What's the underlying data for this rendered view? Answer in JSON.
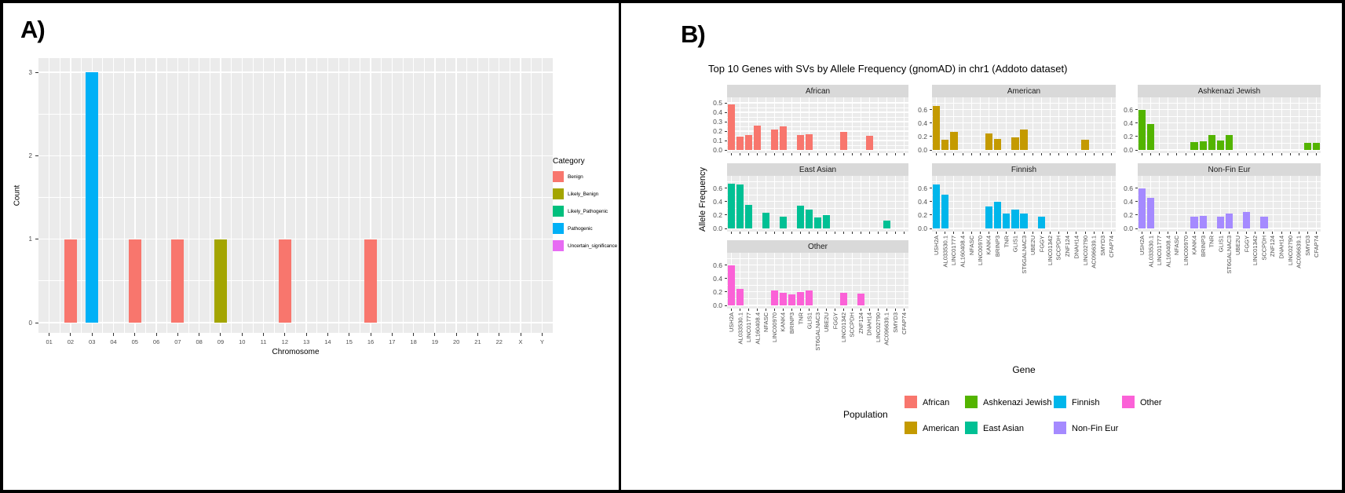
{
  "panel_a": {
    "label": "A)"
  },
  "panel_b": {
    "label": "B)"
  },
  "chart_data": [
    {
      "id": "clinical-significance-by-chromosome",
      "type": "bar",
      "title": "",
      "xlabel": "Chromosome",
      "ylabel": "Count",
      "ylim": [
        0,
        3
      ],
      "yticks": [
        0,
        1,
        2,
        3
      ],
      "grid": true,
      "panel_background": "#EBEBEB",
      "categories": [
        "01",
        "02",
        "03",
        "04",
        "05",
        "06",
        "07",
        "08",
        "09",
        "10",
        "11",
        "12",
        "13",
        "14",
        "15",
        "16",
        "17",
        "18",
        "19",
        "20",
        "21",
        "22",
        "X",
        "Y"
      ],
      "bars": [
        {
          "chromosome": "02",
          "category": "Benign",
          "count": 1
        },
        {
          "chromosome": "03",
          "category": "Pathogenic",
          "count": 3
        },
        {
          "chromosome": "05",
          "category": "Benign",
          "count": 1
        },
        {
          "chromosome": "07",
          "category": "Benign",
          "count": 1
        },
        {
          "chromosome": "09",
          "category": "Likely_Benign",
          "count": 1
        },
        {
          "chromosome": "12",
          "category": "Benign",
          "count": 1
        },
        {
          "chromosome": "16",
          "category": "Benign",
          "count": 1
        }
      ],
      "legend": {
        "title": "Category",
        "position": "right",
        "entries": [
          {
            "label": "Benign",
            "color": "#F8766D"
          },
          {
            "label": "Likely_Benign",
            "color": "#A3A500"
          },
          {
            "label": "Likely_Pathogenic",
            "color": "#00BF7D"
          },
          {
            "label": "Pathogenic",
            "color": "#00B0F6"
          },
          {
            "label": "Uncertain_significance",
            "color": "#E76BF3"
          }
        ]
      }
    },
    {
      "id": "top10-genes-allele-frequency-facets",
      "type": "bar",
      "faceted": true,
      "title": "Top 10 Genes with SVs by Allele Frequency (gnomAD) in chr1 (Addoto dataset)",
      "xlabel": "Gene",
      "ylabel": "Allele Frequency",
      "grid": true,
      "panel_background": "#EBEBEB",
      "categories": [
        "USH2A",
        "AL033530.1",
        "LINC01777",
        "AL160408.4",
        "NFASC",
        "LINC00970",
        "KANK4",
        "BRINP3",
        "TNR",
        "GLIS1",
        "ST6GALNAC3",
        "UBE2U",
        "FGGY",
        "LINC01342",
        "SCCPDH",
        "ZNF124",
        "DNAH14",
        "LINC02790",
        "AC096639.1",
        "SMYD3",
        "CFAP74"
      ],
      "facets": [
        {
          "name": "African",
          "color": "#F8766D",
          "ylim": [
            0,
            0.5
          ],
          "yticks": [
            0,
            0.1,
            0.2,
            0.3,
            0.4,
            0.5
          ],
          "values": {
            "USH2A": 0.48,
            "AL033530.1": 0.14,
            "LINC01777": 0.16,
            "AL160408.4": 0.26,
            "LINC00970": 0.22,
            "KANK4": 0.25,
            "TNR": 0.16,
            "GLIS1": 0.17,
            "LINC01342": 0.19,
            "DNAH14": 0.15
          }
        },
        {
          "name": "American",
          "color": "#C49A00",
          "ylim": [
            0,
            0.7
          ],
          "yticks": [
            0,
            0.2,
            0.4,
            0.6
          ],
          "values": {
            "USH2A": 0.65,
            "AL033530.1": 0.15,
            "LINC01777": 0.27,
            "KANK4": 0.24,
            "BRINP3": 0.16,
            "GLIS1": 0.19,
            "ST6GALNAC3": 0.3,
            "LINC02790": 0.15
          }
        },
        {
          "name": "Ashkenazi Jewish",
          "color": "#53B400",
          "ylim": [
            0,
            0.7
          ],
          "yticks": [
            0,
            0.2,
            0.4,
            0.6
          ],
          "values": {
            "USH2A": 0.6,
            "AL033530.1": 0.38,
            "KANK4": 0.12,
            "BRINP3": 0.13,
            "TNR": 0.22,
            "GLIS1": 0.14,
            "ST6GALNAC3": 0.22,
            "SMYD3": 0.11,
            "CFAP74": 0.1
          }
        },
        {
          "name": "East Asian",
          "color": "#00C094",
          "ylim": [
            0,
            0.7
          ],
          "yticks": [
            0,
            0.2,
            0.4,
            0.6
          ],
          "values": {
            "USH2A": 0.67,
            "AL033530.1": 0.65,
            "LINC01777": 0.35,
            "NFASC": 0.23,
            "KANK4": 0.17,
            "TNR": 0.34,
            "GLIS1": 0.28,
            "ST6GALNAC3": 0.16,
            "UBE2U": 0.2,
            "AC096639.1": 0.12
          }
        },
        {
          "name": "Finnish",
          "color": "#00B6EB",
          "ylim": [
            0,
            0.7
          ],
          "yticks": [
            0,
            0.2,
            0.4,
            0.6
          ],
          "values": {
            "USH2A": 0.65,
            "AL033530.1": 0.5,
            "KANK4": 0.33,
            "BRINP3": 0.4,
            "TNR": 0.22,
            "GLIS1": 0.28,
            "ST6GALNAC3": 0.22,
            "FGGY": 0.17
          }
        },
        {
          "name": "Non-Fin Eur",
          "color": "#A58AFF",
          "ylim": [
            0,
            0.7
          ],
          "yticks": [
            0,
            0.2,
            0.4,
            0.6
          ],
          "values": {
            "USH2A": 0.6,
            "AL033530.1": 0.45,
            "KANK4": 0.17,
            "BRINP3": 0.19,
            "GLIS1": 0.18,
            "ST6GALNAC3": 0.22,
            "FGGY": 0.25,
            "SCCPDH": 0.17
          }
        },
        {
          "name": "Other",
          "color": "#FB61D7",
          "ylim": [
            0,
            0.7
          ],
          "yticks": [
            0,
            0.2,
            0.4,
            0.6
          ],
          "values": {
            "USH2A": 0.6,
            "AL033530.1": 0.24,
            "LINC00970": 0.22,
            "KANK4": 0.19,
            "BRINP3": 0.16,
            "TNR": 0.2,
            "GLIS1": 0.22,
            "LINC01342": 0.19,
            "ZNF124": 0.17
          }
        }
      ],
      "legend": {
        "title": "Population",
        "position": "bottom",
        "entries": [
          {
            "label": "African",
            "color": "#F8766D"
          },
          {
            "label": "American",
            "color": "#C49A00"
          },
          {
            "label": "Ashkenazi Jewish",
            "color": "#53B400"
          },
          {
            "label": "East Asian",
            "color": "#00C094"
          },
          {
            "label": "Finnish",
            "color": "#00B6EB"
          },
          {
            "label": "Non-Fin Eur",
            "color": "#A58AFF"
          },
          {
            "label": "Other",
            "color": "#FB61D7"
          }
        ]
      }
    }
  ]
}
